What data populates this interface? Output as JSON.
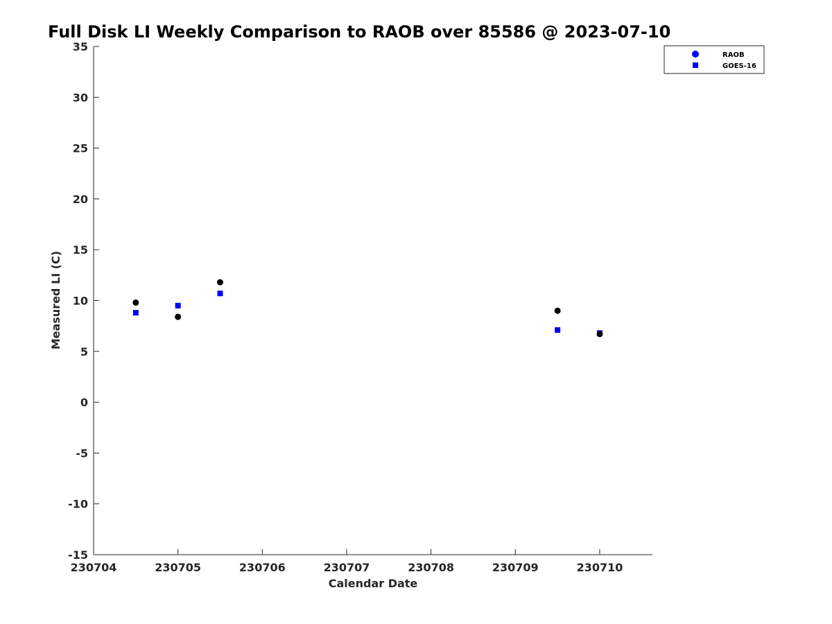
{
  "chart_data": {
    "type": "scatter",
    "title": "Full Disk LI Weekly Comparison to RAOB over 85586 @ 2023-07-10",
    "xlabel": "Calendar Date",
    "ylabel": "Measured LI (C)",
    "xlim": [
      "2023-07-04",
      "2023-07-10T15:00"
    ],
    "ylim": [
      -15,
      35
    ],
    "x_ticks": [
      {
        "value": "2023-07-04",
        "label": "230704"
      },
      {
        "value": "2023-07-05",
        "label": "230705"
      },
      {
        "value": "2023-07-06",
        "label": "230706"
      },
      {
        "value": "2023-07-07",
        "label": "230707"
      },
      {
        "value": "2023-07-08",
        "label": "230708"
      },
      {
        "value": "2023-07-09",
        "label": "230709"
      },
      {
        "value": "2023-07-10",
        "label": "230710"
      }
    ],
    "y_ticks": [
      35,
      30,
      25,
      20,
      15,
      10,
      5,
      0,
      -5,
      -10,
      -15
    ],
    "y_tick_labels": [
      "35",
      "30",
      "25",
      "20",
      "15",
      "10",
      "5",
      "0",
      "-5",
      "-10",
      "-15"
    ],
    "grid": false,
    "legend_position": "top-right",
    "series": [
      {
        "name": "RAOB",
        "marker": "circle",
        "legend_color": "#0000ff",
        "point_color": "#000000",
        "points": [
          {
            "x": "2023-07-04T12:00",
            "y": 9.8
          },
          {
            "x": "2023-07-05T00:00",
            "y": 8.4
          },
          {
            "x": "2023-07-05T12:00",
            "y": 11.8
          },
          {
            "x": "2023-07-09T12:00",
            "y": 9.0
          },
          {
            "x": "2023-07-10T00:00",
            "y": 6.7
          }
        ]
      },
      {
        "name": "GOES-16",
        "marker": "square",
        "legend_color": "#0000ff",
        "point_color": "#0000ff",
        "points": [
          {
            "x": "2023-07-04T12:00",
            "y": 8.8
          },
          {
            "x": "2023-07-05T00:00",
            "y": 9.5
          },
          {
            "x": "2023-07-05T12:00",
            "y": 10.7
          },
          {
            "x": "2023-07-09T12:00",
            "y": 7.1
          },
          {
            "x": "2023-07-10T00:00",
            "y": 6.8
          }
        ]
      }
    ]
  }
}
